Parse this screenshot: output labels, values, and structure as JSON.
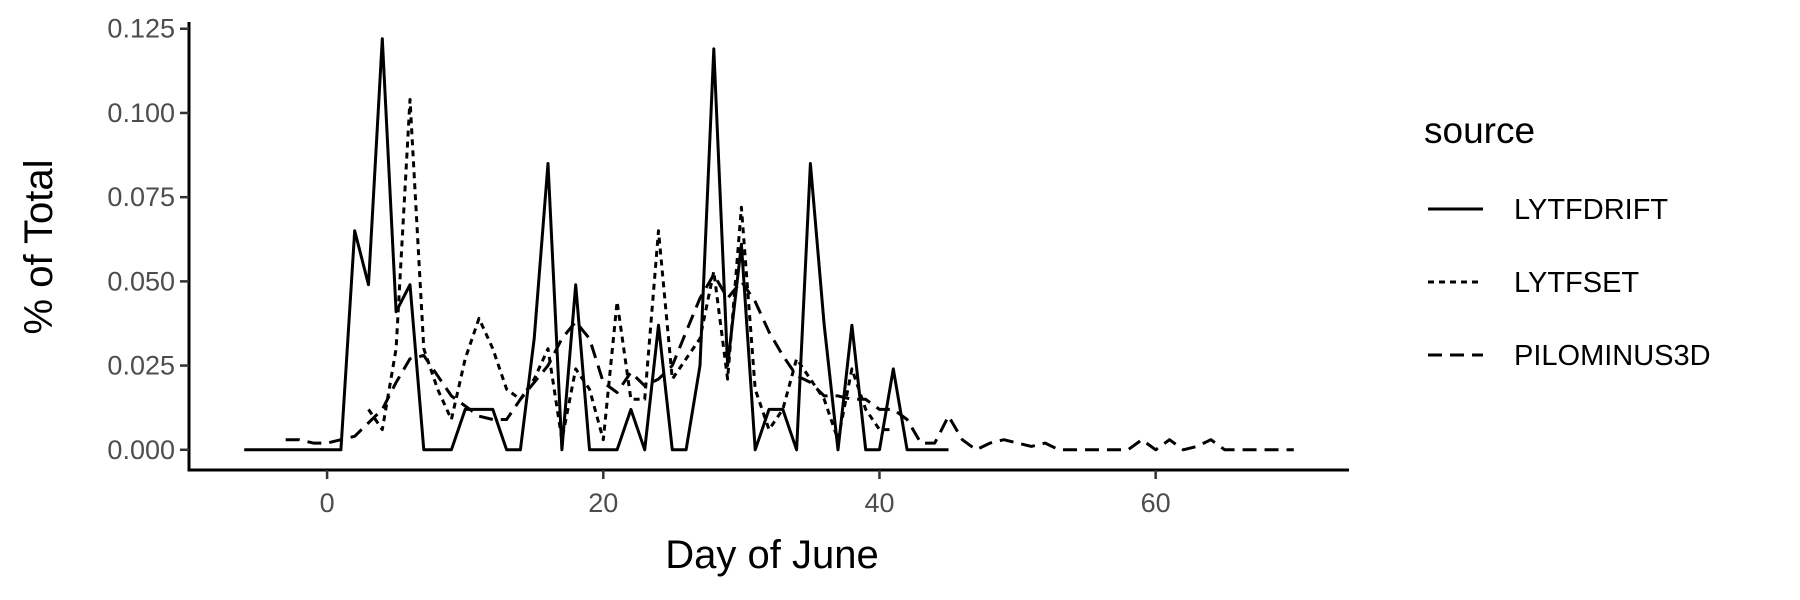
{
  "chart_data": {
    "type": "line",
    "xlabel": "Day of June",
    "ylabel": "% of Total",
    "xlim": [
      -10,
      74
    ],
    "ylim": [
      -0.006,
      0.127
    ],
    "xticks": [
      0,
      20,
      40,
      60
    ],
    "xtick_labels": [
      "0",
      "20",
      "40",
      "60"
    ],
    "yticks": [
      0,
      0.025,
      0.05,
      0.075,
      0.1,
      0.125
    ],
    "ytick_labels": [
      "0.000",
      "0.025",
      "0.050",
      "0.075",
      "0.100",
      "0.125"
    ],
    "grid": false,
    "legend": {
      "title": "source",
      "position": "right"
    },
    "series": [
      {
        "name": "LYTFDRIFT",
        "dash": "solid",
        "x": [
          -6,
          -5,
          -4,
          -3,
          -2,
          -1,
          0,
          1,
          2,
          3,
          4,
          5,
          6,
          7,
          8,
          9,
          10,
          11,
          12,
          13,
          14,
          15,
          16,
          17,
          18,
          19,
          20,
          21,
          22,
          23,
          24,
          25,
          26,
          27,
          28,
          29,
          30,
          31,
          32,
          33,
          34,
          35,
          36,
          37,
          38,
          39,
          40,
          41,
          42,
          43,
          44,
          45
        ],
        "y": [
          0,
          0,
          0,
          0,
          0,
          0,
          0,
          0,
          0.065,
          0.049,
          0.122,
          0.041,
          0.049,
          0,
          0,
          0,
          0.012,
          0.012,
          0.012,
          0,
          0,
          0.033,
          0.085,
          0,
          0.049,
          0,
          0,
          0,
          0.012,
          0,
          0.037,
          0,
          0,
          0.025,
          0.119,
          0.025,
          0.061,
          0,
          0.012,
          0.012,
          0,
          0.085,
          0.037,
          0,
          0.037,
          0,
          0,
          0.024,
          0,
          0,
          0,
          0
        ]
      },
      {
        "name": "LYTFSET",
        "dash": "dotted",
        "x": [
          3,
          4,
          5,
          6,
          7,
          8,
          9,
          10,
          11,
          12,
          13,
          14,
          15,
          16,
          17,
          18,
          19,
          20,
          21,
          22,
          23,
          24,
          25,
          26,
          27,
          28,
          29,
          30,
          31,
          32,
          33,
          34,
          35,
          36,
          37,
          38,
          39,
          40,
          41
        ],
        "y": [
          0.012,
          0.006,
          0.03,
          0.104,
          0.03,
          0.018,
          0.009,
          0.027,
          0.039,
          0.03,
          0.018,
          0.015,
          0.021,
          0.03,
          0.003,
          0.024,
          0.018,
          0.003,
          0.044,
          0.015,
          0.015,
          0.065,
          0.021,
          0.027,
          0.033,
          0.053,
          0.021,
          0.072,
          0.018,
          0.006,
          0.012,
          0.027,
          0.021,
          0.015,
          0.003,
          0.024,
          0.012,
          0.006,
          0.006
        ]
      },
      {
        "name": "PILOMINUS3D",
        "dash": "dashed",
        "x": [
          -3,
          -2,
          -1,
          0,
          1,
          2,
          3,
          4,
          5,
          6,
          7,
          8,
          9,
          10,
          11,
          12,
          13,
          14,
          15,
          16,
          17,
          18,
          19,
          20,
          21,
          22,
          23,
          24,
          25,
          26,
          27,
          28,
          29,
          30,
          31,
          32,
          33,
          34,
          35,
          36,
          37,
          38,
          39,
          40,
          41,
          42,
          43,
          44,
          45,
          46,
          47,
          48,
          49,
          50,
          51,
          52,
          53,
          54,
          55,
          56,
          57,
          58,
          59,
          60,
          61,
          62,
          63,
          64,
          65,
          66,
          67,
          68,
          69,
          70
        ],
        "y": [
          0.003,
          0.003,
          0.002,
          0.002,
          0.003,
          0.004,
          0.008,
          0.012,
          0.02,
          0.027,
          0.028,
          0.022,
          0.016,
          0.013,
          0.01,
          0.009,
          0.009,
          0.015,
          0.02,
          0.025,
          0.033,
          0.038,
          0.033,
          0.02,
          0.017,
          0.023,
          0.019,
          0.021,
          0.025,
          0.035,
          0.045,
          0.052,
          0.045,
          0.05,
          0.044,
          0.035,
          0.028,
          0.022,
          0.02,
          0.016,
          0.016,
          0.015,
          0.015,
          0.012,
          0.012,
          0.009,
          0.002,
          0.002,
          0.01,
          0.003,
          0,
          0.002,
          0.003,
          0.002,
          0.001,
          0.002,
          0,
          0,
          0,
          0,
          0,
          0,
          0.003,
          0,
          0.003,
          0,
          0.001,
          0.003,
          0,
          0,
          0,
          0,
          0,
          0
        ]
      }
    ]
  }
}
